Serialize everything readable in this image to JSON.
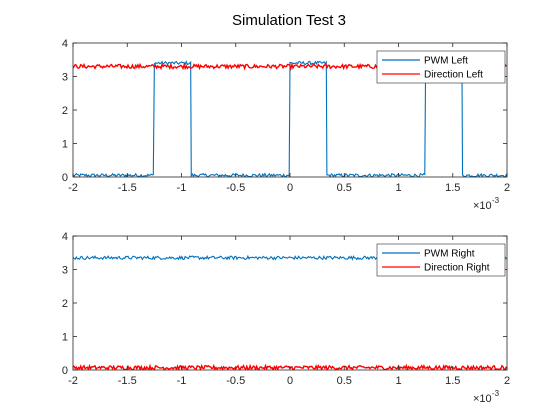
{
  "figure": {
    "title": "Simulation Test 3"
  },
  "chart_data": [
    {
      "type": "line",
      "xlim": [
        -0.002,
        0.002
      ],
      "ylim": [
        0,
        4
      ],
      "x_exponent_label": "10",
      "x_exponent": "-3",
      "x_ticks": [
        -0.002,
        -0.0015,
        -0.001,
        -0.0005,
        0,
        0.0005,
        0.001,
        0.0015,
        0.002
      ],
      "x_tick_labels": [
        "-2",
        "-1.5",
        "-1",
        "-0.5",
        "0",
        "0.5",
        "1",
        "1.5",
        "2"
      ],
      "y_ticks": [
        0,
        1,
        2,
        3,
        4
      ],
      "y_tick_labels": [
        "0",
        "1",
        "2",
        "3",
        "4"
      ],
      "grid": false,
      "legend_position": "top-right",
      "series": [
        {
          "name": "PWM Left",
          "color": "#0072BD",
          "x": [
            -0.002,
            -0.00125,
            -0.00125,
            -0.00091,
            -0.00091,
            0.0,
            0.0,
            0.00034,
            0.00034,
            0.00125,
            0.00125,
            0.00159,
            0.00159,
            0.002
          ],
          "y": [
            0.05,
            0.05,
            3.4,
            3.4,
            0.05,
            0.05,
            3.4,
            3.4,
            0.05,
            0.05,
            3.4,
            3.4,
            0.05,
            0.05
          ]
        },
        {
          "name": "Direction Left",
          "color": "#FF0000",
          "x": [
            -0.002,
            0.002
          ],
          "y": [
            3.3,
            3.3
          ]
        }
      ]
    },
    {
      "type": "line",
      "xlim": [
        -0.002,
        0.002
      ],
      "ylim": [
        0,
        4
      ],
      "x_exponent_label": "10",
      "x_exponent": "-3",
      "x_ticks": [
        -0.002,
        -0.0015,
        -0.001,
        -0.0005,
        0,
        0.0005,
        0.001,
        0.0015,
        0.002
      ],
      "x_tick_labels": [
        "-2",
        "-1.5",
        "-1",
        "-0.5",
        "0",
        "0.5",
        "1",
        "1.5",
        "2"
      ],
      "y_ticks": [
        0,
        1,
        2,
        3,
        4
      ],
      "y_tick_labels": [
        "0",
        "1",
        "2",
        "3",
        "4"
      ],
      "grid": false,
      "legend_position": "top-right",
      "series": [
        {
          "name": "PWM Right",
          "color": "#0072BD",
          "x": [
            -0.002,
            0.002
          ],
          "y": [
            3.35,
            3.35
          ]
        },
        {
          "name": "Direction Right",
          "color": "#FF0000",
          "x": [
            -0.002,
            0.002
          ],
          "y": [
            0.07,
            0.07
          ]
        }
      ]
    }
  ]
}
